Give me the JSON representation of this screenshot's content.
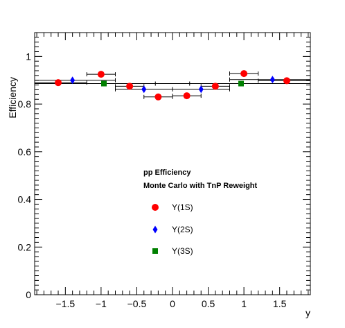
{
  "chart_data": {
    "type": "scatter",
    "title": "",
    "xlabel": "y",
    "ylabel": "Efficiency",
    "xlim": [
      -1.93,
      1.93
    ],
    "ylim": [
      0,
      1.1
    ],
    "x_ticks": [
      -1.5,
      -1,
      -0.5,
      0,
      0.5,
      1,
      1.5
    ],
    "x_tick_labels": [
      "−1.5",
      "−1",
      "−0.5",
      "0",
      "0.5",
      "1",
      "1.5"
    ],
    "y_ticks": [
      0,
      0.2,
      0.4,
      0.6,
      0.8,
      1
    ],
    "y_tick_labels": [
      "0",
      "0.2",
      "0.4",
      "0.6",
      "0.8",
      "1"
    ],
    "grid": false,
    "legend_header": [
      "pp Efficiency",
      "Monte Carlo with TnP Reweight"
    ],
    "legend_position": "center",
    "series": [
      {
        "name": "Υ(1S)",
        "color": "#ff0000",
        "marker": "circle",
        "points": [
          {
            "x": -1.6,
            "y": 0.89,
            "xerr": 0.4
          },
          {
            "x": -1.0,
            "y": 0.925,
            "xerr": 0.2
          },
          {
            "x": -0.6,
            "y": 0.875,
            "xerr": 0.2
          },
          {
            "x": -0.2,
            "y": 0.83,
            "xerr": 0.2
          },
          {
            "x": 0.2,
            "y": 0.835,
            "xerr": 0.2
          },
          {
            "x": 0.6,
            "y": 0.875,
            "xerr": 0.2
          },
          {
            "x": 1.0,
            "y": 0.928,
            "xerr": 0.2
          },
          {
            "x": 1.6,
            "y": 0.898,
            "xerr": 0.4
          }
        ]
      },
      {
        "name": "Υ(2S)",
        "color": "#0000ff",
        "marker": "diamond",
        "points": [
          {
            "x": -1.4,
            "y": 0.9,
            "xerr": 0.6
          },
          {
            "x": -0.4,
            "y": 0.862,
            "xerr": 0.4
          },
          {
            "x": 0.4,
            "y": 0.862,
            "xerr": 0.4
          },
          {
            "x": 1.4,
            "y": 0.903,
            "xerr": 0.6
          }
        ]
      },
      {
        "name": "Υ(3S)",
        "color": "#008000",
        "marker": "square",
        "points": [
          {
            "x": -0.96,
            "y": 0.886,
            "xerr": 1.2
          },
          {
            "x": 0.96,
            "y": 0.886,
            "xerr": 1.2
          }
        ]
      }
    ]
  }
}
